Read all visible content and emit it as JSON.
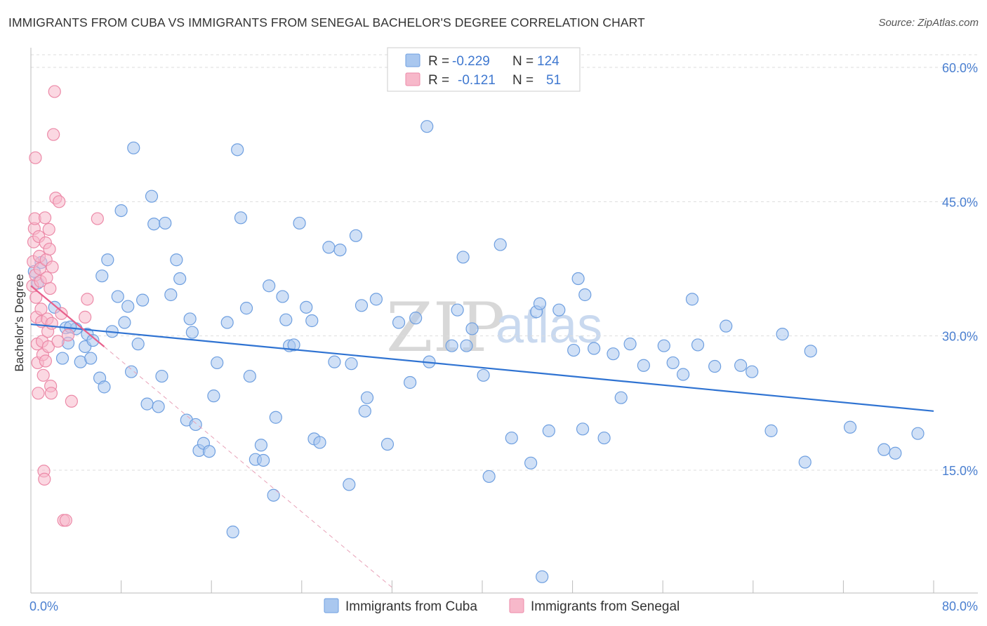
{
  "header": {
    "title": "IMMIGRANTS FROM CUBA VS IMMIGRANTS FROM SENEGAL BACHELOR'S DEGREE CORRELATION CHART",
    "source": "Source: ZipAtlas.com"
  },
  "watermark": {
    "part1": "ZIP",
    "part2": "atlas"
  },
  "legend_stats": [
    {
      "r_label": "R =",
      "r_value": "-0.229",
      "n_label": "N =",
      "n_value": "124",
      "color": "#a8c8f0"
    },
    {
      "r_label": "R =",
      "r_value": "-0.121",
      "n_label": "N =",
      "n_value": "51",
      "color": "#f5b6c8"
    }
  ],
  "colors": {
    "cuba_fill": "#a9c7ef",
    "cuba_stroke": "#6e9fe0",
    "cuba_line": "#2f73d2",
    "senegal_fill": "#f7b8ca",
    "senegal_stroke": "#ec8aa8",
    "senegal_line": "#e8608c",
    "grid": "#dddddd",
    "tick_text": "#4a7fd0"
  },
  "chart_data": {
    "type": "scatter",
    "title": "IMMIGRANTS FROM CUBA VS IMMIGRANTS FROM SENEGAL BACHELOR'S DEGREE CORRELATION CHART",
    "xlabel": "",
    "ylabel": "Bachelor's Degree",
    "xlim": [
      0,
      80
    ],
    "ylim": [
      0,
      62
    ],
    "x_tick_labels": [
      "0.0%",
      "80.0%"
    ],
    "y_ticks": [
      15,
      30,
      45,
      60
    ],
    "y_tick_labels": [
      "15.0%",
      "30.0%",
      "45.0%",
      "60.0%"
    ],
    "grid": true,
    "legend_position": "bottom-center",
    "series": [
      {
        "name": "Immigrants from Cuba",
        "trend": {
          "x": [
            0,
            80
          ],
          "y": [
            31.3,
            21.6
          ]
        },
        "points": [
          [
            2.1,
            33.2
          ],
          [
            2.8,
            27.5
          ],
          [
            3.1,
            30.9
          ],
          [
            3.3,
            29.2
          ],
          [
            4.0,
            30.8
          ],
          [
            3.5,
            31.0
          ],
          [
            4.4,
            27.1
          ],
          [
            4.8,
            28.8
          ],
          [
            5.0,
            30.2
          ],
          [
            5.3,
            27.5
          ],
          [
            5.5,
            29.5
          ],
          [
            6.1,
            25.3
          ],
          [
            6.3,
            36.7
          ],
          [
            6.5,
            24.3
          ],
          [
            6.8,
            38.5
          ],
          [
            7.2,
            30.5
          ],
          [
            7.7,
            34.4
          ],
          [
            8.0,
            44.0
          ],
          [
            8.3,
            31.5
          ],
          [
            8.6,
            33.3
          ],
          [
            8.9,
            26.0
          ],
          [
            9.1,
            51.0
          ],
          [
            9.5,
            29.1
          ],
          [
            9.9,
            34.0
          ],
          [
            10.3,
            22.4
          ],
          [
            10.7,
            45.6
          ],
          [
            10.9,
            42.5
          ],
          [
            11.3,
            22.1
          ],
          [
            11.6,
            25.5
          ],
          [
            11.9,
            42.6
          ],
          [
            12.4,
            34.6
          ],
          [
            12.9,
            38.5
          ],
          [
            13.2,
            36.4
          ],
          [
            13.8,
            20.6
          ],
          [
            14.1,
            31.9
          ],
          [
            14.3,
            30.4
          ],
          [
            14.6,
            20.1
          ],
          [
            14.9,
            17.2
          ],
          [
            15.3,
            18.0
          ],
          [
            15.8,
            17.1
          ],
          [
            16.2,
            23.3
          ],
          [
            16.5,
            27.0
          ],
          [
            17.4,
            31.5
          ],
          [
            17.9,
            8.1
          ],
          [
            18.3,
            50.8
          ],
          [
            18.6,
            43.2
          ],
          [
            19.1,
            33.1
          ],
          [
            19.4,
            25.5
          ],
          [
            19.9,
            16.2
          ],
          [
            20.4,
            17.8
          ],
          [
            20.6,
            16.1
          ],
          [
            21.1,
            35.6
          ],
          [
            21.5,
            12.2
          ],
          [
            21.7,
            20.9
          ],
          [
            22.3,
            34.4
          ],
          [
            22.6,
            31.8
          ],
          [
            22.9,
            28.9
          ],
          [
            23.3,
            29.0
          ],
          [
            23.8,
            42.6
          ],
          [
            24.4,
            33.2
          ],
          [
            24.9,
            31.7
          ],
          [
            25.1,
            18.5
          ],
          [
            25.6,
            18.1
          ],
          [
            26.4,
            39.9
          ],
          [
            26.9,
            27.1
          ],
          [
            27.4,
            39.6
          ],
          [
            28.2,
            13.4
          ],
          [
            28.4,
            26.9
          ],
          [
            28.8,
            41.2
          ],
          [
            29.3,
            33.4
          ],
          [
            29.6,
            21.6
          ],
          [
            29.8,
            23.1
          ],
          [
            30.6,
            34.1
          ],
          [
            31.6,
            17.9
          ],
          [
            32.6,
            31.5
          ],
          [
            33.6,
            24.8
          ],
          [
            34.1,
            32.0
          ],
          [
            35.1,
            53.4
          ],
          [
            35.3,
            27.1
          ],
          [
            37.3,
            28.9
          ],
          [
            37.8,
            32.9
          ],
          [
            38.3,
            38.8
          ],
          [
            38.6,
            28.9
          ],
          [
            39.1,
            30.8
          ],
          [
            40.1,
            25.6
          ],
          [
            40.6,
            14.3
          ],
          [
            41.6,
            40.2
          ],
          [
            42.6,
            18.6
          ],
          [
            44.3,
            15.8
          ],
          [
            44.8,
            32.7
          ],
          [
            45.1,
            33.6
          ],
          [
            45.3,
            3.1
          ],
          [
            45.9,
            19.4
          ],
          [
            46.8,
            32.9
          ],
          [
            48.1,
            28.4
          ],
          [
            48.5,
            36.4
          ],
          [
            48.9,
            19.6
          ],
          [
            49.1,
            34.6
          ],
          [
            49.9,
            28.6
          ],
          [
            50.8,
            18.6
          ],
          [
            51.6,
            28.0
          ],
          [
            52.3,
            23.1
          ],
          [
            53.1,
            29.1
          ],
          [
            54.3,
            26.7
          ],
          [
            56.1,
            28.9
          ],
          [
            56.9,
            27.0
          ],
          [
            57.8,
            25.7
          ],
          [
            58.6,
            34.1
          ],
          [
            59.1,
            29.0
          ],
          [
            60.6,
            26.6
          ],
          [
            61.6,
            31.1
          ],
          [
            62.9,
            26.7
          ],
          [
            63.9,
            26.0
          ],
          [
            65.6,
            19.4
          ],
          [
            66.6,
            30.2
          ],
          [
            68.6,
            15.9
          ],
          [
            69.1,
            28.3
          ],
          [
            72.6,
            19.8
          ],
          [
            75.6,
            17.3
          ],
          [
            76.6,
            16.9
          ],
          [
            78.6,
            19.1
          ],
          [
            0.3,
            37.2
          ],
          [
            0.6,
            35.9
          ],
          [
            0.9,
            38.2
          ]
        ]
      },
      {
        "name": "Immigrants from Senegal",
        "trend": {
          "x": [
            0,
            6.5
          ],
          "y": [
            35.6,
            28.8
          ]
        },
        "trend_ext": {
          "x": [
            6.5,
            32
          ],
          "y": [
            28.8,
            0
          ]
        },
        "points": [
          [
            0.15,
            35.6
          ],
          [
            0.2,
            38.3
          ],
          [
            0.25,
            40.5
          ],
          [
            0.3,
            42.0
          ],
          [
            0.35,
            43.1
          ],
          [
            0.4,
            36.8
          ],
          [
            0.45,
            34.3
          ],
          [
            0.5,
            32.1
          ],
          [
            0.55,
            29.1
          ],
          [
            0.6,
            27.0
          ],
          [
            0.65,
            23.6
          ],
          [
            0.7,
            41.1
          ],
          [
            0.75,
            38.9
          ],
          [
            0.8,
            37.5
          ],
          [
            0.85,
            36.1
          ],
          [
            0.9,
            33.0
          ],
          [
            0.95,
            31.6
          ],
          [
            1.0,
            29.4
          ],
          [
            1.05,
            27.9
          ],
          [
            1.1,
            25.6
          ],
          [
            1.15,
            14.9
          ],
          [
            1.2,
            14.0
          ],
          [
            1.25,
            43.2
          ],
          [
            1.3,
            40.4
          ],
          [
            1.35,
            38.5
          ],
          [
            1.4,
            36.5
          ],
          [
            1.45,
            31.9
          ],
          [
            1.5,
            30.5
          ],
          [
            1.55,
            28.8
          ],
          [
            1.6,
            41.9
          ],
          [
            1.65,
            39.7
          ],
          [
            1.7,
            35.3
          ],
          [
            1.75,
            24.4
          ],
          [
            1.8,
            23.6
          ],
          [
            1.85,
            31.4
          ],
          [
            1.9,
            37.7
          ],
          [
            2.0,
            52.5
          ],
          [
            2.1,
            57.3
          ],
          [
            2.2,
            45.4
          ],
          [
            2.4,
            29.4
          ],
          [
            2.5,
            45.0
          ],
          [
            2.7,
            32.5
          ],
          [
            2.9,
            9.4
          ],
          [
            3.1,
            9.4
          ],
          [
            3.3,
            30.1
          ],
          [
            3.6,
            22.7
          ],
          [
            4.8,
            32.1
          ],
          [
            5.0,
            34.1
          ],
          [
            5.9,
            43.1
          ],
          [
            0.4,
            49.9
          ],
          [
            1.3,
            27.2
          ]
        ]
      }
    ]
  },
  "bottom_legend": [
    {
      "label": "Immigrants from Cuba"
    },
    {
      "label": "Immigrants from Senegal"
    }
  ]
}
